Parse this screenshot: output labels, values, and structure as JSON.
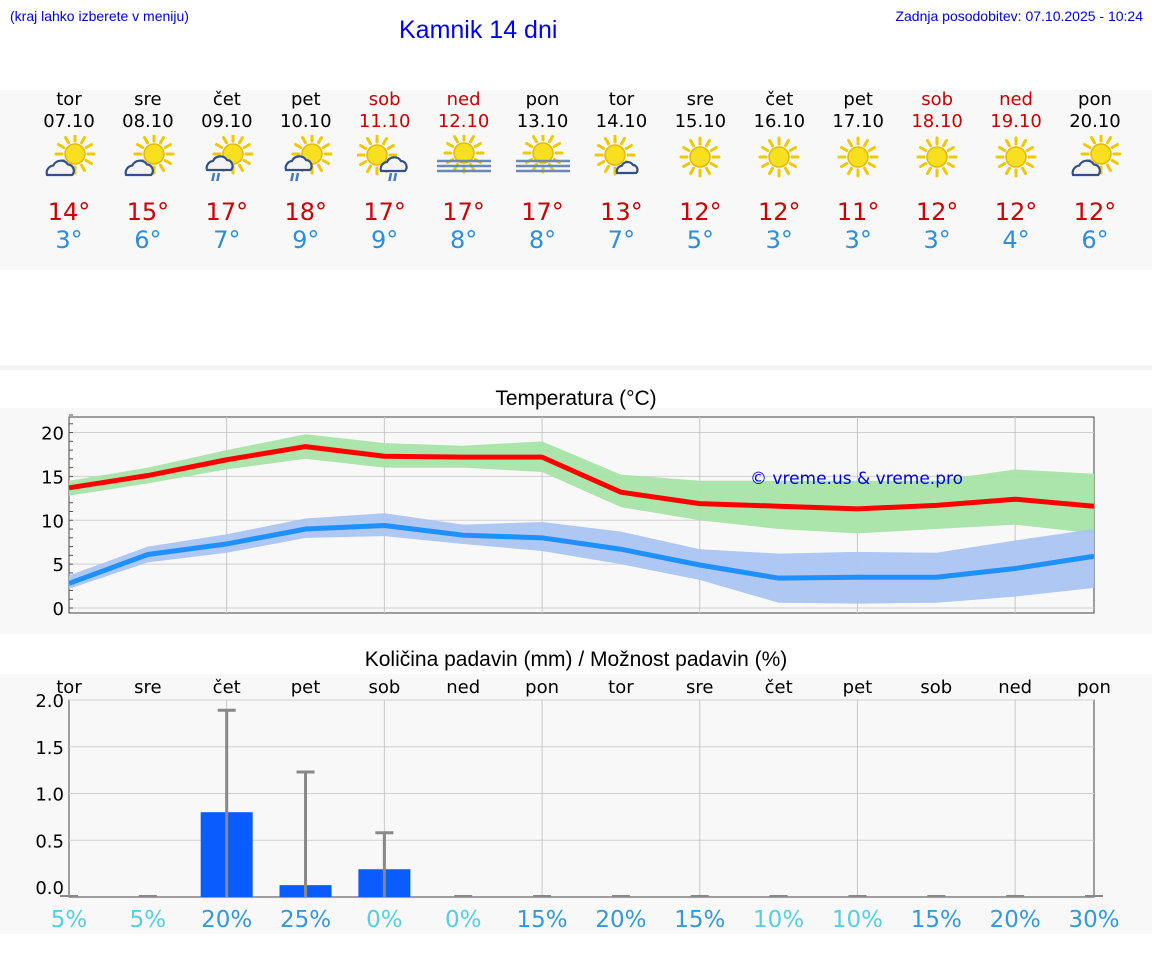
{
  "header": {
    "location_hint": "(kraj lahko izberete v meniju)",
    "title": "Kamnik 14 dni",
    "last_update": "Zadnja posodobitev: 07.10.2025 - 10:24"
  },
  "colors": {
    "weekday": "#000000",
    "weekend": "#cc0000",
    "max_temp": "#cc0000",
    "min_temp": "#2a8fe0",
    "max_line": "#ff0000",
    "max_band": "#a8e4a8",
    "min_line": "#1e90ff",
    "min_band": "#aac4f2",
    "precip_bar": "#0a5cff",
    "chance_high": "#3399dd",
    "chance_low": "#55d0e0"
  },
  "days": [
    {
      "name": "tor",
      "date": "07.10",
      "icon": "partly-cloudy-icon",
      "max": "14°",
      "min": "3°",
      "weekend": false
    },
    {
      "name": "sre",
      "date": "08.10",
      "icon": "partly-cloudy-icon",
      "max": "15°",
      "min": "6°",
      "weekend": false
    },
    {
      "name": "čet",
      "date": "09.10",
      "icon": "cloud-rain-sun-icon",
      "max": "17°",
      "min": "7°",
      "weekend": false
    },
    {
      "name": "pet",
      "date": "10.10",
      "icon": "cloud-rain-sun-icon",
      "max": "18°",
      "min": "9°",
      "weekend": false
    },
    {
      "name": "sob",
      "date": "11.10",
      "icon": "sun-cloud-rain-icon",
      "max": "17°",
      "min": "9°",
      "weekend": true
    },
    {
      "name": "ned",
      "date": "12.10",
      "icon": "sun-fog-icon",
      "max": "17°",
      "min": "8°",
      "weekend": true
    },
    {
      "name": "pon",
      "date": "13.10",
      "icon": "sun-fog-icon",
      "max": "17°",
      "min": "8°",
      "weekend": false
    },
    {
      "name": "tor",
      "date": "14.10",
      "icon": "sun-small-cloud-icon",
      "max": "13°",
      "min": "7°",
      "weekend": false
    },
    {
      "name": "sre",
      "date": "15.10",
      "icon": "sun-icon",
      "max": "12°",
      "min": "5°",
      "weekend": false
    },
    {
      "name": "čet",
      "date": "16.10",
      "icon": "sun-icon",
      "max": "12°",
      "min": "3°",
      "weekend": false
    },
    {
      "name": "pet",
      "date": "17.10",
      "icon": "sun-icon",
      "max": "11°",
      "min": "3°",
      "weekend": false
    },
    {
      "name": "sob",
      "date": "18.10",
      "icon": "sun-icon",
      "max": "12°",
      "min": "3°",
      "weekend": true
    },
    {
      "name": "ned",
      "date": "19.10",
      "icon": "sun-icon",
      "max": "12°",
      "min": "4°",
      "weekend": true
    },
    {
      "name": "pon",
      "date": "20.10",
      "icon": "partly-cloudy-icon",
      "max": "12°",
      "min": "6°",
      "weekend": false
    }
  ],
  "chart_data": [
    {
      "type": "line",
      "title": "Temperatura (°C)",
      "watermark": "© vreme.us & vreme.pro",
      "ylim": [
        0,
        22
      ],
      "yticks": [
        0,
        5,
        10,
        15,
        20
      ],
      "series": [
        {
          "name": "max",
          "values": [
            13.7,
            15.1,
            16.9,
            18.4,
            17.3,
            17.2,
            17.2,
            13.2,
            11.9,
            11.6,
            11.3,
            11.7,
            12.4,
            11.6
          ],
          "low": [
            12.8,
            14.2,
            15.8,
            17.0,
            16.0,
            16.0,
            15.5,
            11.5,
            10.0,
            9.0,
            8.5,
            9.0,
            9.5,
            8.5
          ],
          "high": [
            14.5,
            16.0,
            18.0,
            19.8,
            18.8,
            18.5,
            19.0,
            15.2,
            14.5,
            14.5,
            14.5,
            14.5,
            15.8,
            15.3
          ]
        },
        {
          "name": "min",
          "values": [
            2.8,
            6.1,
            7.3,
            9.0,
            9.4,
            8.3,
            8.0,
            6.7,
            4.9,
            3.4,
            3.5,
            3.5,
            4.5,
            5.9
          ],
          "low": [
            2.2,
            5.2,
            6.3,
            8.0,
            8.2,
            7.3,
            6.5,
            5.0,
            3.2,
            0.6,
            0.5,
            0.6,
            1.3,
            2.3
          ],
          "high": [
            3.7,
            7.0,
            8.4,
            10.2,
            10.8,
            9.5,
            9.8,
            8.7,
            6.7,
            6.2,
            6.4,
            6.3,
            7.7,
            9.0
          ]
        }
      ]
    },
    {
      "type": "bar",
      "title": "Količina padavin (mm) / Možnost padavin (%)",
      "categories": [
        "tor",
        "sre",
        "čet",
        "pet",
        "sob",
        "ned",
        "pon",
        "tor",
        "sre",
        "čet",
        "pet",
        "sob",
        "ned",
        "pon"
      ],
      "ylim": [
        0,
        2.0
      ],
      "ytick_labels": [
        "2.0",
        "1.5",
        "1.0",
        "0.5",
        "0.0"
      ],
      "values": [
        0,
        0,
        0.8,
        0.02,
        0.19,
        0,
        0,
        0,
        0,
        0,
        0,
        0,
        0,
        0
      ],
      "error_high": [
        0,
        0,
        1.89,
        1.23,
        0.58,
        0,
        0,
        0,
        0,
        0,
        0,
        0,
        0,
        0
      ],
      "chance": [
        "5%",
        "5%",
        "20%",
        "25%",
        "0%",
        "0%",
        "15%",
        "20%",
        "15%",
        "10%",
        "10%",
        "15%",
        "20%",
        "30%"
      ],
      "chance_values": [
        5,
        5,
        20,
        25,
        0,
        0,
        15,
        20,
        15,
        10,
        10,
        15,
        20,
        30
      ]
    }
  ]
}
